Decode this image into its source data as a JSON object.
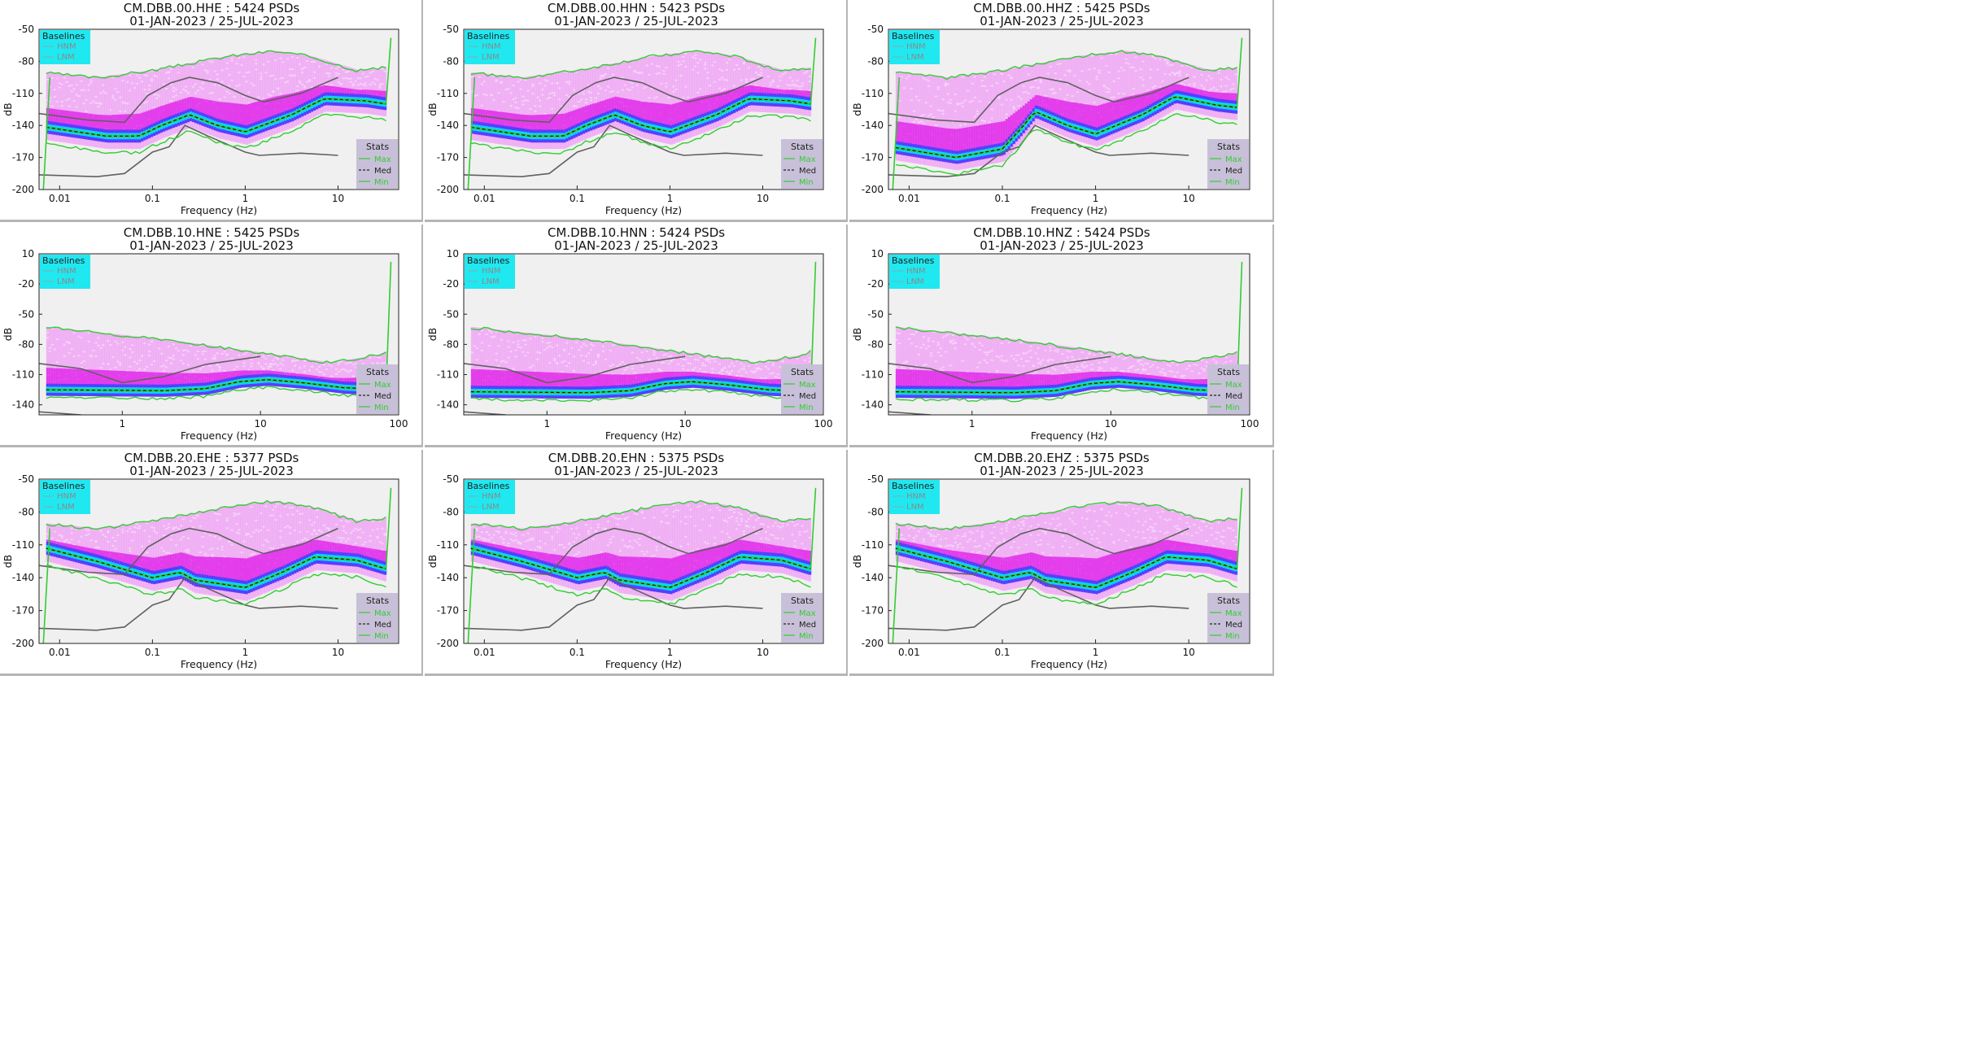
{
  "chart_data": [
    {
      "type": "heatmap",
      "title": "CM.DBB.00.HHE : 5424 PSDs",
      "subtitle": "01-JAN-2023 / 25-JUL-2023",
      "xlabel": "Frequency (Hz)",
      "ylabel": "dB",
      "xscale": "log",
      "xlim": [
        0.006,
        45
      ],
      "ylim": [
        -200,
        -50
      ],
      "xticks": [
        0.01,
        0.1,
        1,
        10
      ],
      "xtick_labels": [
        "0.01",
        "0.1",
        "1",
        "10"
      ],
      "yticks": [
        -50,
        -80,
        -110,
        -140,
        -170,
        -200
      ],
      "band": "broadband",
      "variant": 0,
      "legend_baselines": {
        "title": "Baselines",
        "entries": [
          "HNM",
          "LNM"
        ]
      },
      "legend_stats": {
        "title": "Stats",
        "entries": [
          "Max",
          "Med",
          "Min"
        ]
      }
    },
    {
      "type": "heatmap",
      "title": "CM.DBB.00.HHN : 5423 PSDs",
      "subtitle": "01-JAN-2023 / 25-JUL-2023",
      "xlabel": "Frequency (Hz)",
      "ylabel": "dB",
      "xscale": "log",
      "xlim": [
        0.006,
        45
      ],
      "ylim": [
        -200,
        -50
      ],
      "xticks": [
        0.01,
        0.1,
        1,
        10
      ],
      "xtick_labels": [
        "0.01",
        "0.1",
        "1",
        "10"
      ],
      "yticks": [
        -50,
        -80,
        -110,
        -140,
        -170,
        -200
      ],
      "band": "broadband",
      "variant": 1,
      "legend_baselines": {
        "title": "Baselines",
        "entries": [
          "HNM",
          "LNM"
        ]
      },
      "legend_stats": {
        "title": "Stats",
        "entries": [
          "Max",
          "Med",
          "Min"
        ]
      }
    },
    {
      "type": "heatmap",
      "title": "CM.DBB.00.HHZ : 5425 PSDs",
      "subtitle": "01-JAN-2023 / 25-JUL-2023",
      "xlabel": "Frequency (Hz)",
      "ylabel": "dB",
      "xscale": "log",
      "xlim": [
        0.006,
        45
      ],
      "ylim": [
        -200,
        -50
      ],
      "xticks": [
        0.01,
        0.1,
        1,
        10
      ],
      "xtick_labels": [
        "0.01",
        "0.1",
        "1",
        "10"
      ],
      "yticks": [
        -50,
        -80,
        -110,
        -140,
        -170,
        -200
      ],
      "band": "broadband",
      "variant": 2,
      "legend_baselines": {
        "title": "Baselines",
        "entries": [
          "HNM",
          "LNM"
        ]
      },
      "legend_stats": {
        "title": "Stats",
        "entries": [
          "Max",
          "Med",
          "Min"
        ]
      }
    },
    {
      "type": "heatmap",
      "title": "CM.DBB.10.HNE : 5425 PSDs",
      "subtitle": "01-JAN-2023 / 25-JUL-2023",
      "xlabel": "Frequency (Hz)",
      "ylabel": "dB",
      "xscale": "log",
      "xlim": [
        0.25,
        100
      ],
      "ylim": [
        -150,
        10
      ],
      "xticks": [
        1,
        10,
        100
      ],
      "xtick_labels": [
        "1",
        "10",
        "100"
      ],
      "yticks": [
        10,
        -20,
        -50,
        -80,
        -110,
        -140
      ],
      "band": "accelerometer",
      "variant": 0,
      "legend_baselines": {
        "title": "Baselines",
        "entries": [
          "HNM",
          "LNM"
        ]
      },
      "legend_stats": {
        "title": "Stats",
        "entries": [
          "Max",
          "Med",
          "Min"
        ]
      }
    },
    {
      "type": "heatmap",
      "title": "CM.DBB.10.HNN : 5424 PSDs",
      "subtitle": "01-JAN-2023 / 25-JUL-2023",
      "xlabel": "Frequency (Hz)",
      "ylabel": "dB",
      "xscale": "log",
      "xlim": [
        0.25,
        100
      ],
      "ylim": [
        -150,
        10
      ],
      "xticks": [
        1,
        10,
        100
      ],
      "xtick_labels": [
        "1",
        "10",
        "100"
      ],
      "yticks": [
        10,
        -20,
        -50,
        -80,
        -110,
        -140
      ],
      "band": "accelerometer",
      "variant": 1,
      "legend_baselines": {
        "title": "Baselines",
        "entries": [
          "HNM",
          "LNM"
        ]
      },
      "legend_stats": {
        "title": "Stats",
        "entries": [
          "Max",
          "Med",
          "Min"
        ]
      }
    },
    {
      "type": "heatmap",
      "title": "CM.DBB.10.HNZ : 5424 PSDs",
      "subtitle": "01-JAN-2023 / 25-JUL-2023",
      "xlabel": "Frequency (Hz)",
      "ylabel": "dB",
      "xscale": "log",
      "xlim": [
        0.25,
        100
      ],
      "ylim": [
        -150,
        10
      ],
      "xticks": [
        1,
        10,
        100
      ],
      "xtick_labels": [
        "1",
        "10",
        "100"
      ],
      "yticks": [
        10,
        -20,
        -50,
        -80,
        -110,
        -140
      ],
      "band": "accelerometer",
      "variant": 2,
      "legend_baselines": {
        "title": "Baselines",
        "entries": [
          "HNM",
          "LNM"
        ]
      },
      "legend_stats": {
        "title": "Stats",
        "entries": [
          "Max",
          "Med",
          "Min"
        ]
      }
    },
    {
      "type": "heatmap",
      "title": "CM.DBB.20.EHE : 5377 PSDs",
      "subtitle": "01-JAN-2023 / 25-JUL-2023",
      "xlabel": "Frequency (Hz)",
      "ylabel": "dB",
      "xscale": "log",
      "xlim": [
        0.006,
        45
      ],
      "ylim": [
        -200,
        -50
      ],
      "xticks": [
        0.01,
        0.1,
        1,
        10
      ],
      "xtick_labels": [
        "0.01",
        "0.1",
        "1",
        "10"
      ],
      "yticks": [
        -50,
        -80,
        -110,
        -140,
        -170,
        -200
      ],
      "band": "shortperiod",
      "variant": 0,
      "legend_baselines": {
        "title": "Baselines",
        "entries": [
          "HNM",
          "LNM"
        ]
      },
      "legend_stats": {
        "title": "Stats",
        "entries": [
          "Max",
          "Med",
          "Min"
        ]
      }
    },
    {
      "type": "heatmap",
      "title": "CM.DBB.20.EHN : 5375 PSDs",
      "subtitle": "01-JAN-2023 / 25-JUL-2023",
      "xlabel": "Frequency (Hz)",
      "ylabel": "dB",
      "xscale": "log",
      "xlim": [
        0.006,
        45
      ],
      "ylim": [
        -200,
        -50
      ],
      "xticks": [
        0.01,
        0.1,
        1,
        10
      ],
      "xtick_labels": [
        "0.01",
        "0.1",
        "1",
        "10"
      ],
      "yticks": [
        -50,
        -80,
        -110,
        -140,
        -170,
        -200
      ],
      "band": "shortperiod",
      "variant": 1,
      "legend_baselines": {
        "title": "Baselines",
        "entries": [
          "HNM",
          "LNM"
        ]
      },
      "legend_stats": {
        "title": "Stats",
        "entries": [
          "Max",
          "Med",
          "Min"
        ]
      }
    },
    {
      "type": "heatmap",
      "title": "CM.DBB.20.EHZ : 5375 PSDs",
      "subtitle": "01-JAN-2023 / 25-JUL-2023",
      "xlabel": "Frequency (Hz)",
      "ylabel": "dB",
      "xscale": "log",
      "xlim": [
        0.006,
        45
      ],
      "ylim": [
        -200,
        -50
      ],
      "xticks": [
        0.01,
        0.1,
        1,
        10
      ],
      "xtick_labels": [
        "0.01",
        "0.1",
        "1",
        "10"
      ],
      "yticks": [
        -50,
        -80,
        -110,
        -140,
        -170,
        -200
      ],
      "band": "shortperiod",
      "variant": 2,
      "legend_baselines": {
        "title": "Baselines",
        "entries": [
          "HNM",
          "LNM"
        ]
      },
      "legend_stats": {
        "title": "Stats",
        "entries": [
          "Max",
          "Med",
          "Min"
        ]
      }
    }
  ],
  "colors": {
    "plot_bg": "#f0f0f0",
    "baselines_box": "#20e8f0",
    "stats_box": "#c8c0d8",
    "nlnm": "#606060",
    "stats_line": "#33cc33",
    "median_line": "#111111",
    "density_low": "#f0a0f5",
    "density_mid": "#e020e8",
    "density_high": "#4040ff",
    "density_peak": "#00e0ff"
  },
  "icons": {
    "baselines_line": "line-swatch",
    "stats_dashed": "dashed-swatch"
  }
}
